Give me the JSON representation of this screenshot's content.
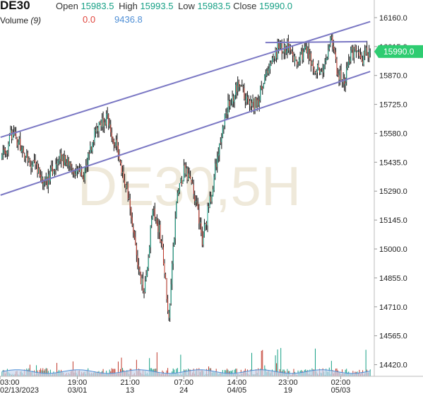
{
  "header": {
    "symbol": "DE30",
    "open_label": "Open",
    "open_value": "15983.5",
    "high_label": "High",
    "high_value": "15993.5",
    "low_label": "Low",
    "low_value": "15983.5",
    "close_label": "Close",
    "close_value": "15990.0",
    "volume_label": "Volume",
    "volume_param": "(9)",
    "volume_value1": "0.0",
    "volume_value2": "9436.8"
  },
  "watermark": "DE30,5H",
  "colors": {
    "up": "#16a085",
    "down": "#c0392b",
    "channel": "#7b78c4",
    "volume_fill": "#c9d7ee",
    "volume_line": "#4f8fd6",
    "price_tag": "#2ecc71"
  },
  "chart_data": {
    "type": "candlestick",
    "title": "DE30,5H",
    "y_axis": {
      "ticks": [
        16160.0,
        16015.0,
        15870.0,
        15725.0,
        15580.0,
        15435.0,
        15290.0,
        15145.0,
        15000.0,
        14855.0,
        14710.0,
        14565.0,
        14420.0
      ],
      "tick_labels": [
        "16160.0",
        "16015.0",
        "15870.0",
        "15725.0",
        "15580.0",
        "15435.0",
        "15290.0",
        "15145.0",
        "15000.0",
        "14855.0",
        "14710.0",
        "14565.0",
        "14420.0"
      ],
      "range": [
        14390,
        16220
      ]
    },
    "x_axis": {
      "tick_labels": [
        [
          "03:00",
          "02/13/2023"
        ],
        [
          "19:00",
          "03/01"
        ],
        [
          "21:00",
          "13"
        ],
        [
          "07:00",
          "24"
        ],
        [
          "14:00",
          "04/05"
        ],
        [
          "23:00",
          "19"
        ],
        [
          "02:00",
          "05/03"
        ]
      ],
      "tick_fractions": [
        0.0,
        0.207,
        0.348,
        0.492,
        0.634,
        0.771,
        0.912
      ]
    },
    "last_price": 15990.0,
    "price_path_keypoints": [
      [
        0,
        15450
      ],
      [
        10,
        15590
      ],
      [
        20,
        15480
      ],
      [
        30,
        15420
      ],
      [
        40,
        15330
      ],
      [
        52,
        15450
      ],
      [
        64,
        15420
      ],
      [
        76,
        15360
      ],
      [
        88,
        15620
      ],
      [
        98,
        15660
      ],
      [
        108,
        15480
      ],
      [
        118,
        15250
      ],
      [
        126,
        14950
      ],
      [
        132,
        14760
      ],
      [
        140,
        15200
      ],
      [
        148,
        15050
      ],
      [
        155,
        14650
      ],
      [
        162,
        15230
      ],
      [
        170,
        15410
      ],
      [
        178,
        15300
      ],
      [
        186,
        15050
      ],
      [
        194,
        15260
      ],
      [
        202,
        15530
      ],
      [
        210,
        15720
      ],
      [
        220,
        15820
      ],
      [
        228,
        15740
      ],
      [
        236,
        15720
      ],
      [
        246,
        15880
      ],
      [
        256,
        16000
      ],
      [
        266,
        16020
      ],
      [
        274,
        15940
      ],
      [
        282,
        16010
      ],
      [
        290,
        15900
      ],
      [
        300,
        15920
      ],
      [
        306,
        16050
      ],
      [
        312,
        15880
      ],
      [
        318,
        15820
      ],
      [
        324,
        15990
      ],
      [
        334,
        15960
      ],
      [
        342,
        15990
      ]
    ],
    "channels": [
      {
        "name": "upper",
        "from": [
          0,
          15560
        ],
        "to": [
          342,
          16140
        ]
      },
      {
        "name": "lower",
        "from": [
          0,
          15270
        ],
        "to": [
          342,
          15890
        ]
      },
      {
        "name": "resistance",
        "from": [
          246,
          16035
        ],
        "to": [
          339,
          16040
        ]
      }
    ],
    "volume": {
      "baseline_range": [
        1500,
        9800
      ],
      "last_value": 9436.8
    }
  }
}
